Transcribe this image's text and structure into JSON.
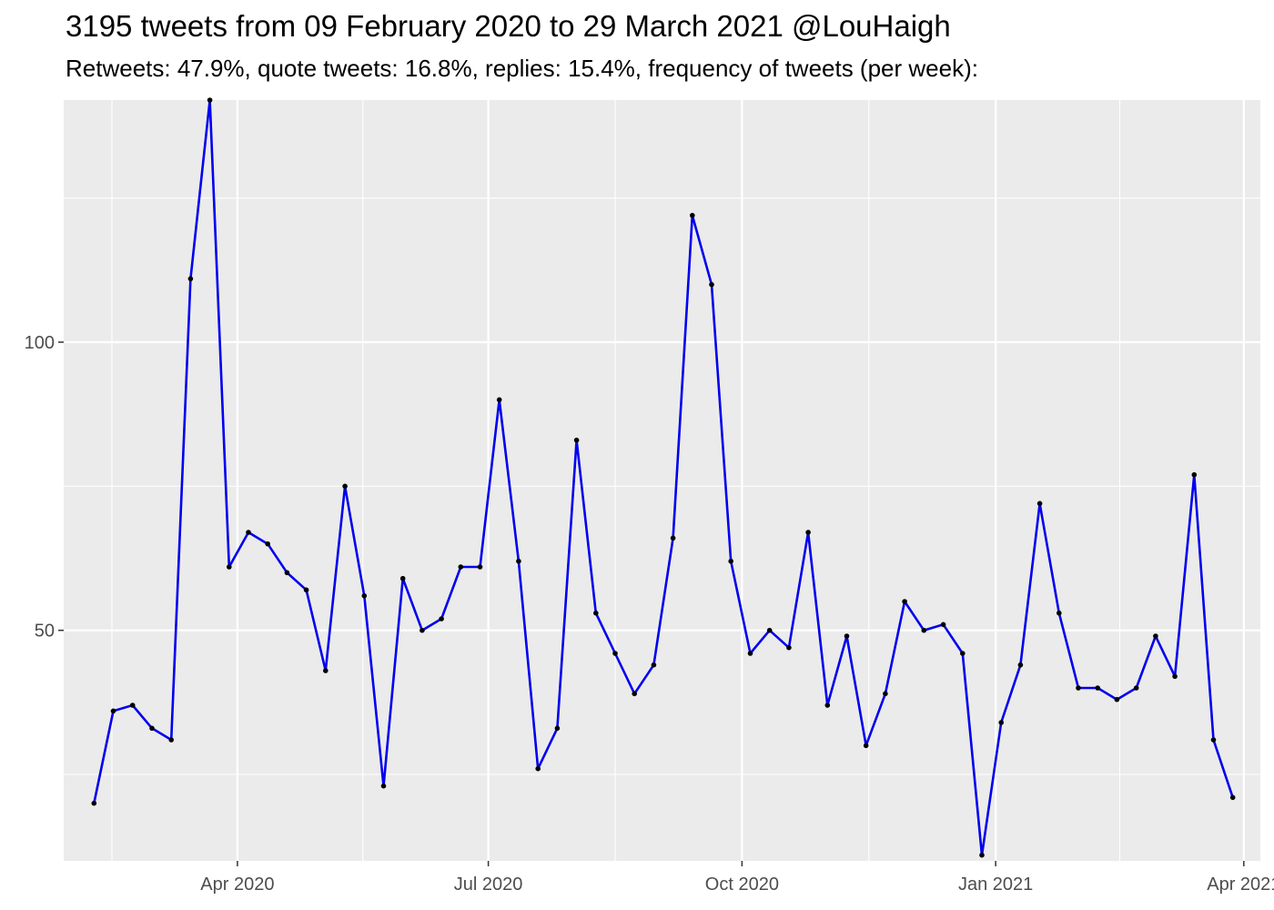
{
  "chart_data": {
    "type": "line",
    "title": "3195 tweets from 09 February 2020 to 29 March 2021 @LouHaigh",
    "subtitle": "Retweets: 47.9%, quote tweets: 16.8%, replies: 15.4%, frequency of tweets (per week):",
    "xlabel": "",
    "ylabel": "",
    "x_start": "2020-02-09",
    "x_step_days": 7,
    "y_ticks": [
      50,
      100
    ],
    "x_ticks": [
      {
        "date": "2020-04-01",
        "label": "Apr 2020"
      },
      {
        "date": "2020-07-01",
        "label": "Jul 2020"
      },
      {
        "date": "2020-10-01",
        "label": "Oct 2020"
      },
      {
        "date": "2021-01-01",
        "label": "Jan 2021"
      },
      {
        "date": "2021-04-01",
        "label": "Apr 2021"
      }
    ],
    "ylim": [
      10,
      142
    ],
    "xlim": [
      "2020-01-29",
      "2021-04-07"
    ],
    "grid": true,
    "series": [
      {
        "line_color": "#0000ee",
        "point_color": "#000000",
        "values": [
          20,
          36,
          37,
          33,
          31,
          111,
          142,
          61,
          67,
          65,
          60,
          57,
          43,
          75,
          56,
          23,
          59,
          50,
          52,
          61,
          61,
          90,
          62,
          26,
          33,
          83,
          53,
          46,
          39,
          44,
          66,
          122,
          110,
          62,
          46,
          50,
          47,
          67,
          37,
          49,
          30,
          39,
          55,
          50,
          51,
          46,
          11,
          34,
          44,
          72,
          53,
          40,
          40,
          38,
          40,
          49,
          42,
          77,
          31,
          21
        ]
      }
    ]
  }
}
